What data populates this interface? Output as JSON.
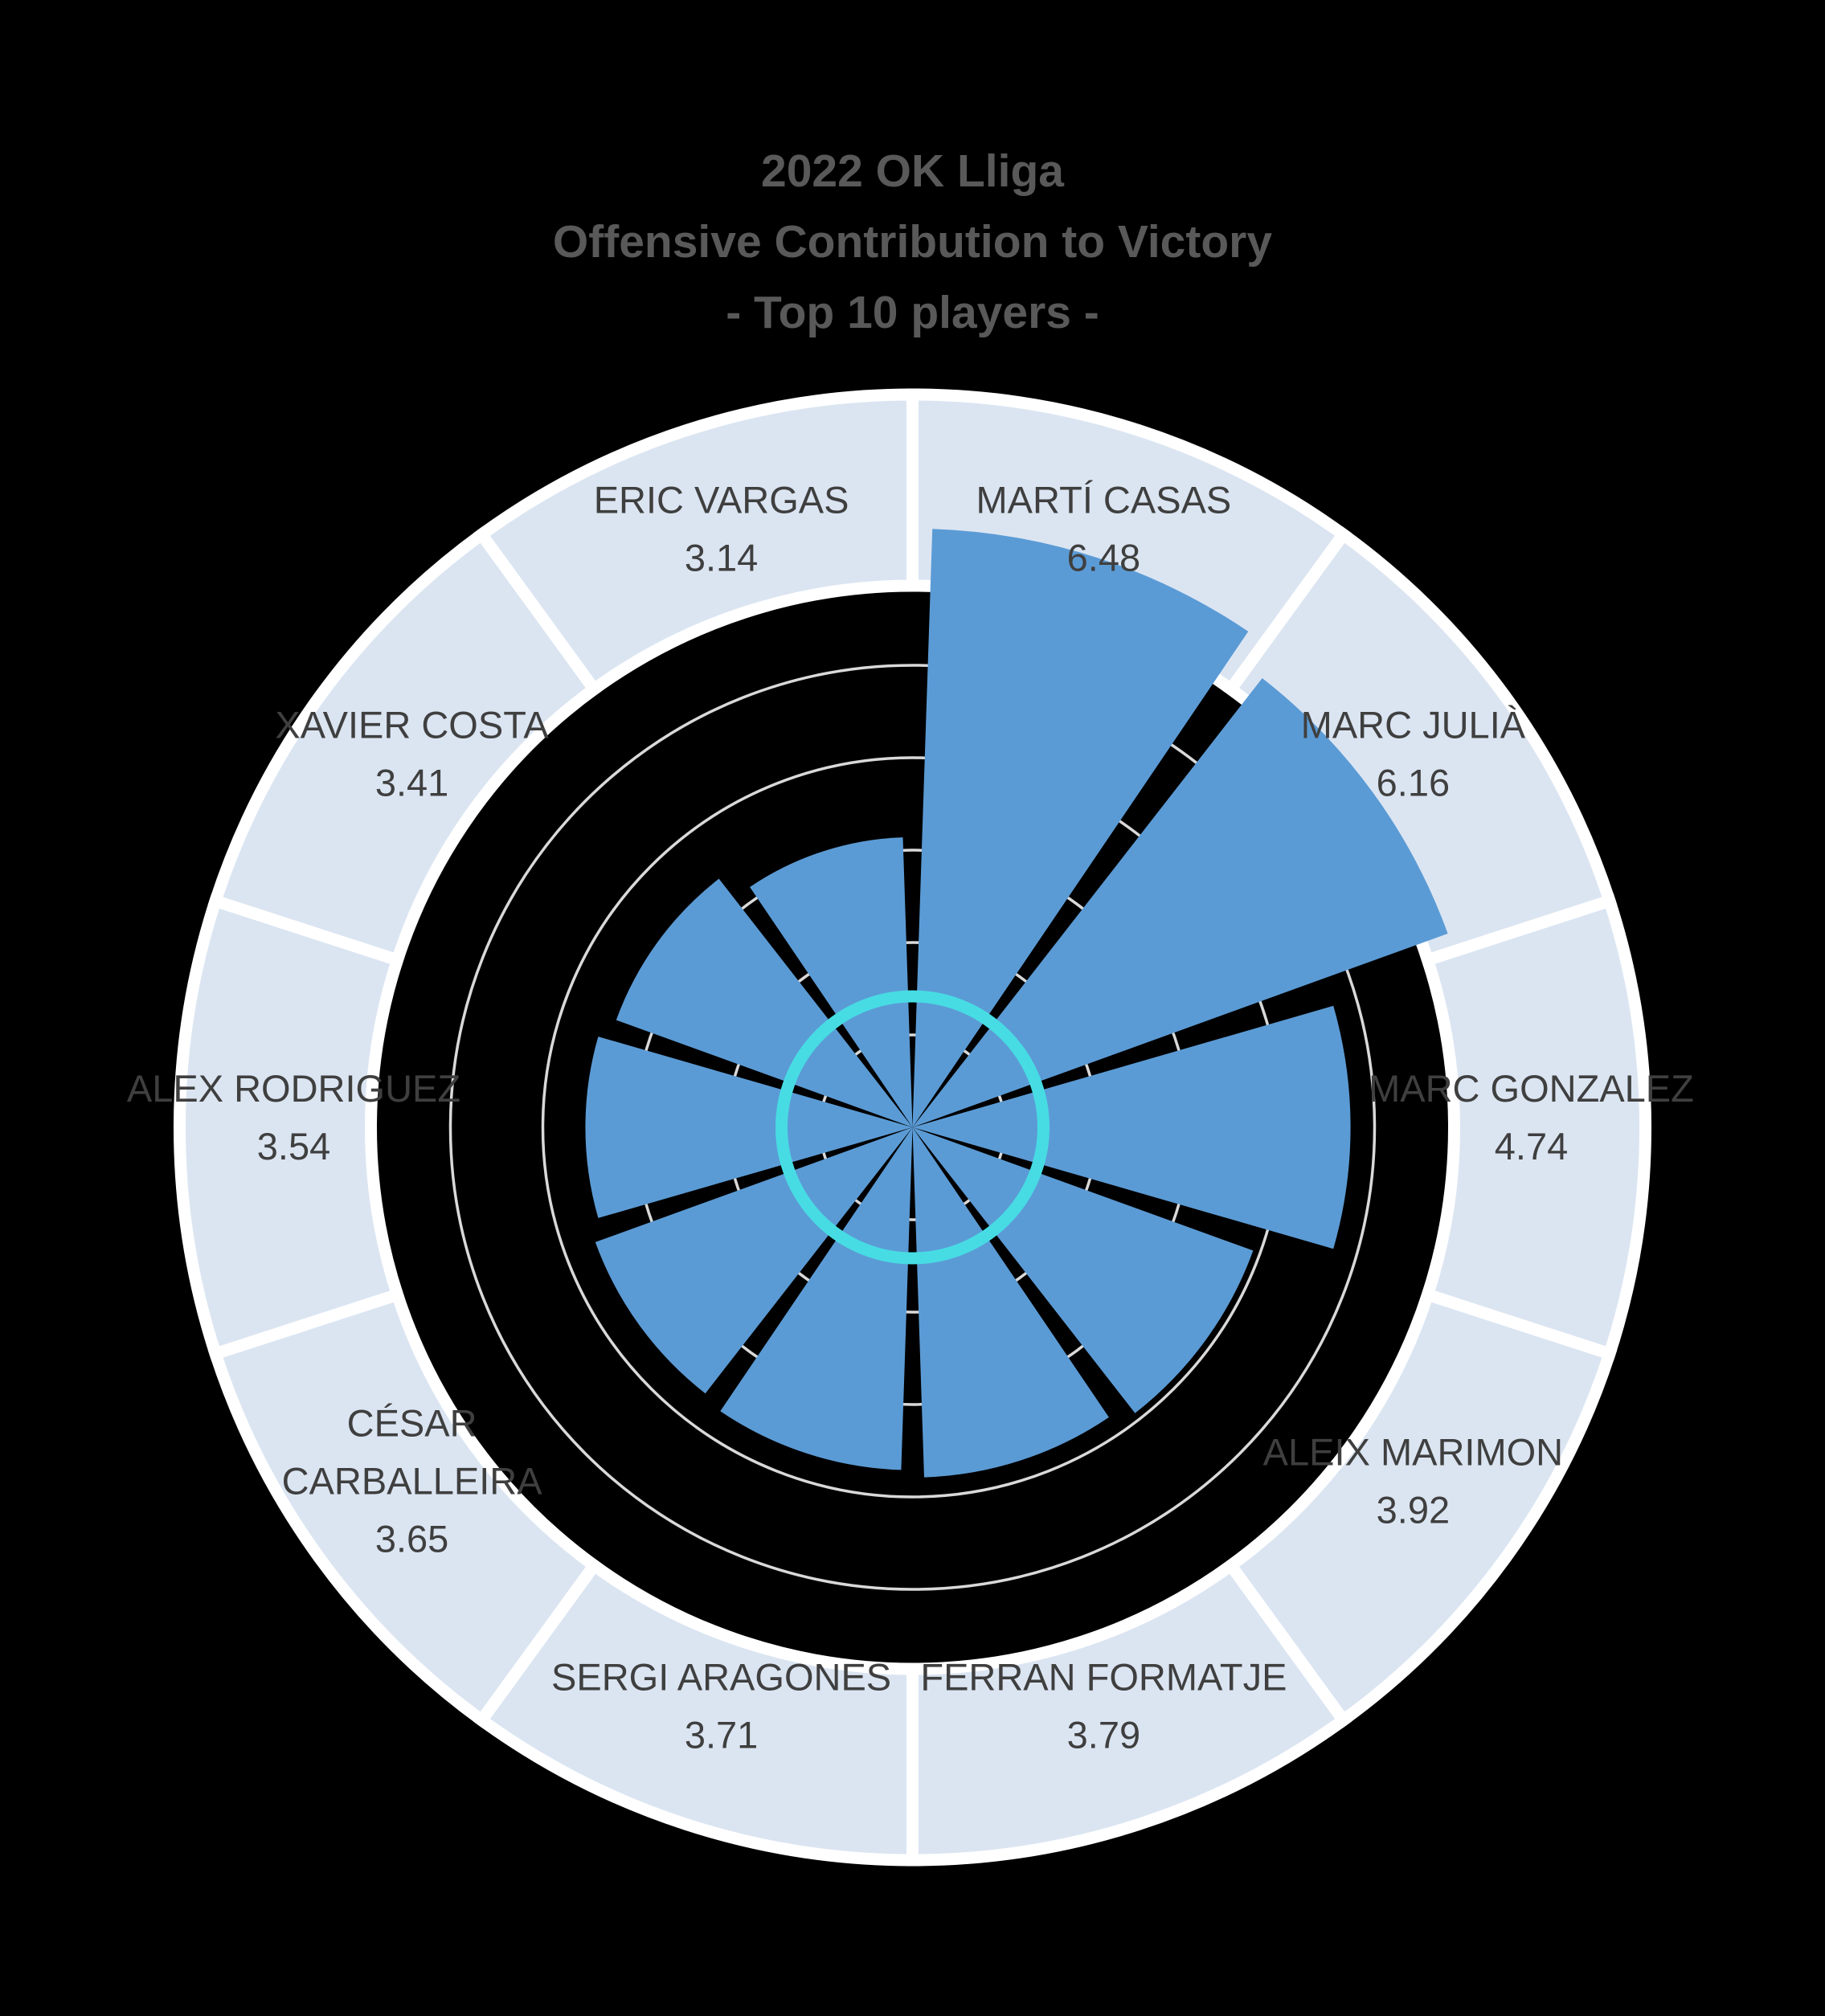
{
  "page": {
    "background": "#000000"
  },
  "chart_data": {
    "type": "polar_bar",
    "title_lines": [
      "2022 OK Lliga",
      "Offensive Contribution to Victory",
      "- Top 10 players -"
    ],
    "direction": "clockwise",
    "start_angle_deg": 0,
    "sector_span_deg": 36,
    "ylim": [
      0,
      6.5
    ],
    "gridline_values": [
      1,
      2,
      3,
      4,
      5
    ],
    "legend": "none",
    "categories": [
      "MARTÍ CASAS",
      "MARC JULIÀ",
      "MARC GONZALEZ",
      "ALEIX MARIMON",
      "FERRAN FORMATJE",
      "SERGI ARAGONES",
      "CÉSAR CARBALLEIRA",
      "ALEX RODRIGUEZ",
      "XAVIER COSTA",
      "ERIC VARGAS"
    ],
    "values": [
      6.48,
      6.16,
      4.74,
      3.92,
      3.79,
      3.71,
      3.65,
      3.54,
      3.41,
      3.14
    ],
    "players": [
      {
        "name": "MARTÍ CASAS",
        "value": 6.48,
        "label": "6.48"
      },
      {
        "name": "MARC JULIÀ",
        "value": 6.16,
        "label": "6.16"
      },
      {
        "name": "MARC GONZALEZ",
        "value": 4.74,
        "label": "4.74"
      },
      {
        "name": "ALEIX MARIMON",
        "value": 3.92,
        "label": "3.92"
      },
      {
        "name": "FERRAN FORMATJE",
        "value": 3.79,
        "label": "3.79"
      },
      {
        "name": "SERGI ARAGONES",
        "value": 3.71,
        "label": "3.71"
      },
      {
        "name": "CÉSAR CARBALLEIRA",
        "value": 3.65,
        "label": "3.65",
        "name_lines": [
          "CÉSAR",
          "CARBALLEIRA"
        ]
      },
      {
        "name": "ALEX RODRIGUEZ",
        "value": 3.54,
        "label": "3.54"
      },
      {
        "name": "XAVIER COSTA",
        "value": 3.41,
        "label": "3.41"
      },
      {
        "name": "ERIC VARGAS",
        "value": 3.14,
        "label": "3.14"
      }
    ],
    "colors": {
      "background": "#000000",
      "bar": "#5b9bd5",
      "ring_segment": "#dbe5f2",
      "ring_border": "#ffffff",
      "gridline": "#d9d9d9",
      "reference_circle": "#47dce4",
      "title_text": "#595959",
      "label_text": "#3f3f3f"
    }
  }
}
